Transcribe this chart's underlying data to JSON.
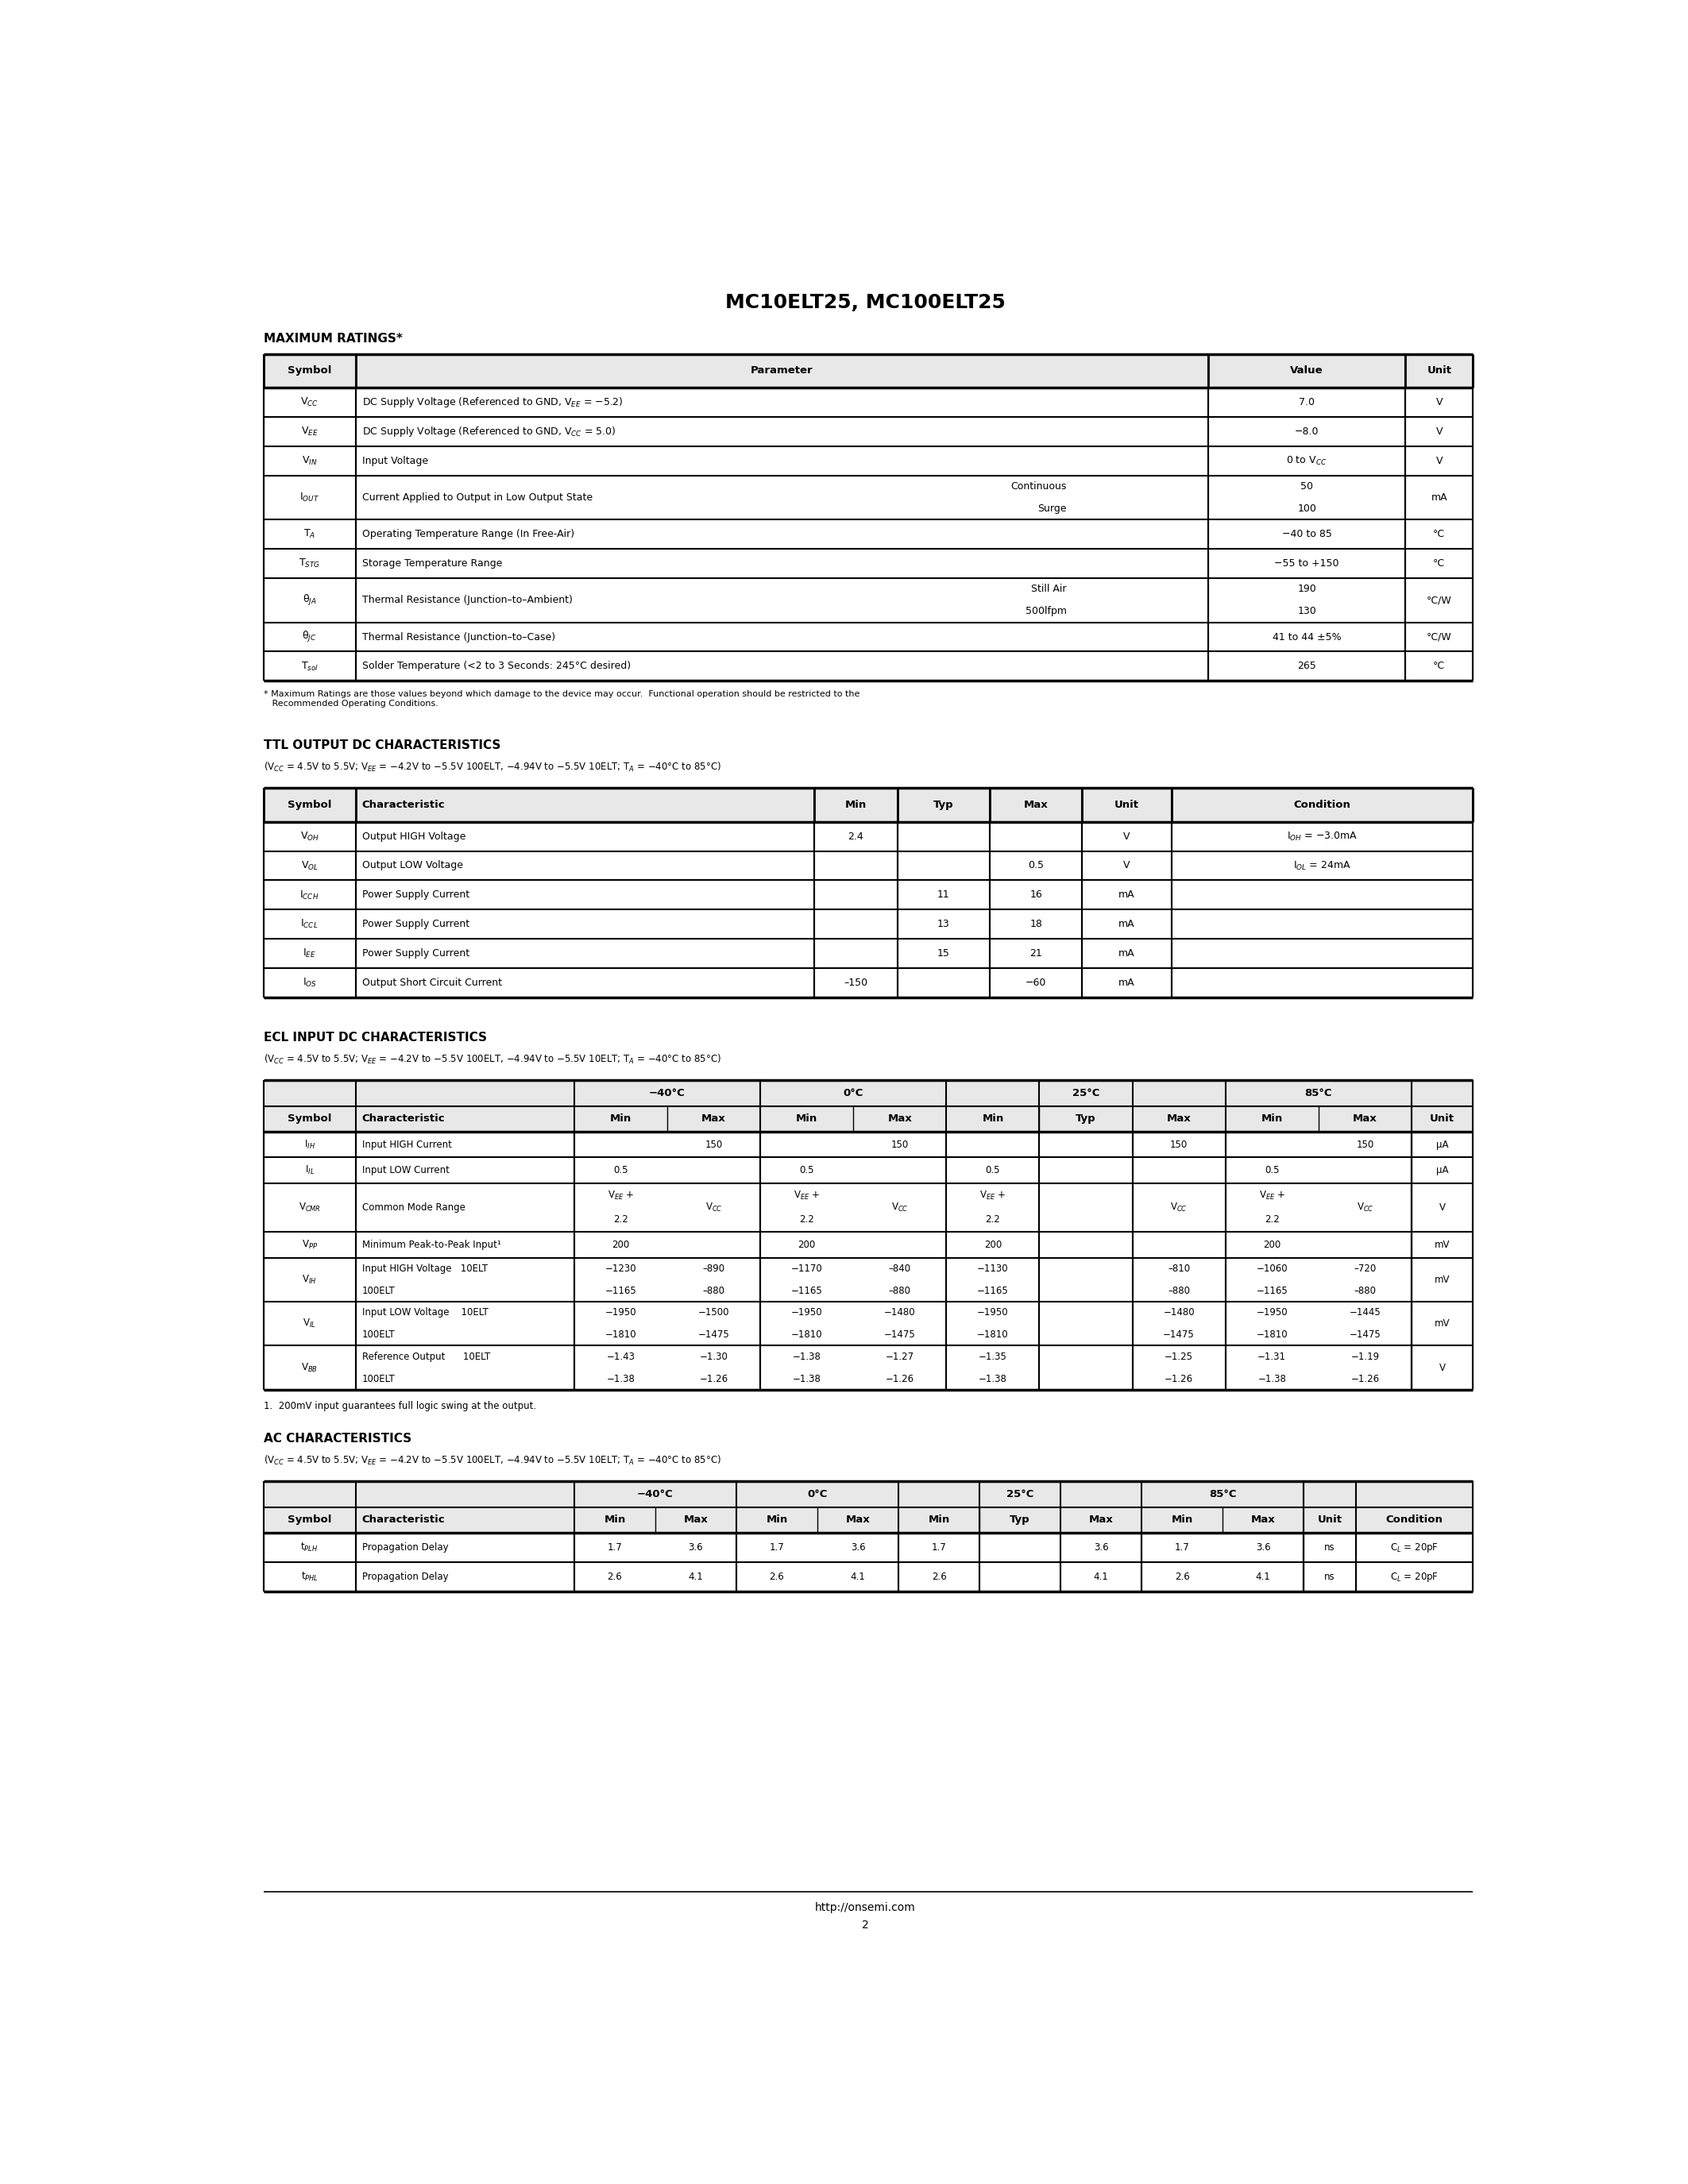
{
  "title": "MC10ELT25, MC100ELT25",
  "bg_color": "#ffffff",
  "footer_url": "http://onsemi.com",
  "footer_page": "2",
  "max_ratings_title": "MAXIMUM RATINGS*",
  "max_ratings_note": "* Maximum Ratings are those values beyond which damage to the device may occur.  Functional operation should be restricted to the\n   Recommended Operating Conditions.",
  "ttl_title": "TTL OUTPUT DC CHARACTERISTICS",
  "ttl_subtitle": "(V$_{CC}$ = 4.5V to 5.5V; V$_{EE}$ = −4.2V to −5.5V 100ELT, −4.94V to −5.5V 10ELT; T$_A$ = −40°C to 85°C)",
  "ecl_title": "ECL INPUT DC CHARACTERISTICS",
  "ecl_subtitle": "(V$_{CC}$ = 4.5V to 5.5V; V$_{EE}$ = −4.2V to −5.5V 100ELT, −4.94V to −5.5V 10ELT; T$_A$ = −40°C to 85°C)",
  "ecl_footnote": "1.  200mV input guarantees full logic swing at the output.",
  "ac_title": "AC CHARACTERISTICS",
  "ac_subtitle": "(V$_{CC}$ = 4.5V to 5.5V; V$_{EE}$ = −4.2V to −5.5V 100ELT, −4.94V to −5.5V 10ELT; T$_A$ = −40°C to 85°C)"
}
